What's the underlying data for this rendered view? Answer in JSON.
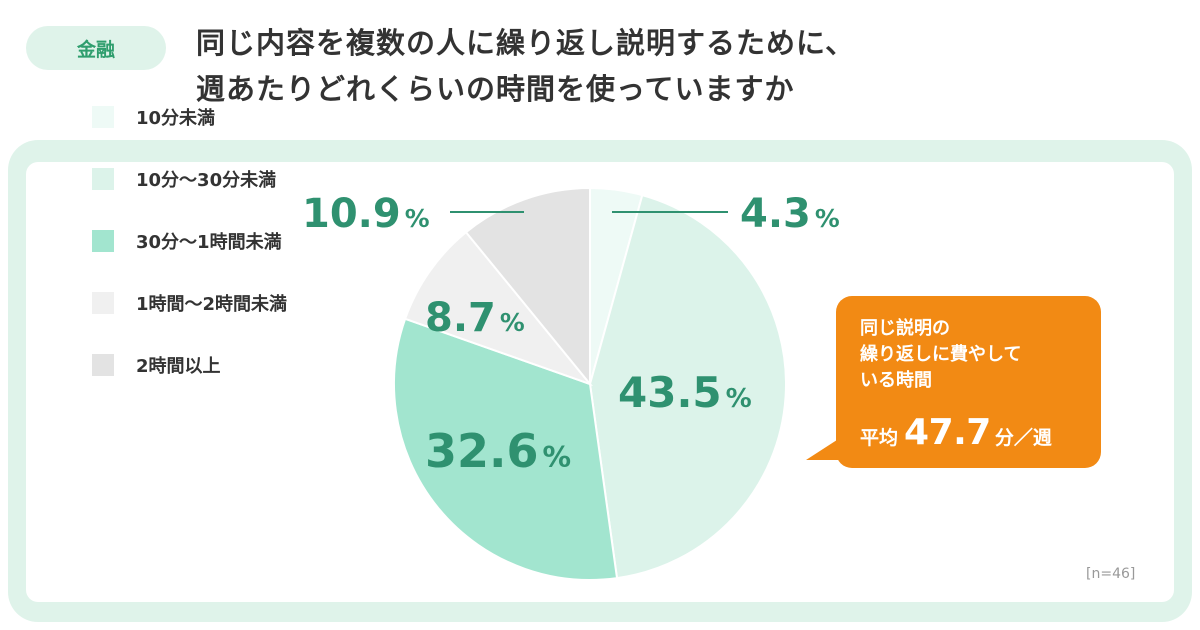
{
  "header": {
    "tag": "金融",
    "title_line1": "同じ内容を複数の人に繰り返し説明するために、",
    "title_line2": "週あたりどれくらいの時間を使っていますか"
  },
  "callout": {
    "text_line1": "同じ説明の",
    "text_line2": "繰り返しに費やして",
    "text_line3": "いる時間",
    "avg_label": "平均",
    "avg_value": "47.7",
    "avg_unit": "分／週",
    "color": "#f28a14"
  },
  "note": "[n=46]",
  "chart_data": {
    "type": "pie",
    "start_angle_deg": 0,
    "direction": "clockwise",
    "labels": [
      "10分未満",
      "10分〜30分未満",
      "30分〜1時間未満",
      "1時間〜2時間未満",
      "2時間以上"
    ],
    "values": [
      4.3,
      43.5,
      32.6,
      8.7,
      10.9
    ],
    "value_labels": [
      "4.3",
      "43.5",
      "32.6",
      "8.7",
      "10.9"
    ],
    "percent_sign": "%",
    "colors": [
      "#eefaf6",
      "#dcf3ea",
      "#a2e5cf",
      "#f0f0f0",
      "#e3e3e3"
    ],
    "legend_position": "left",
    "n": 46
  }
}
